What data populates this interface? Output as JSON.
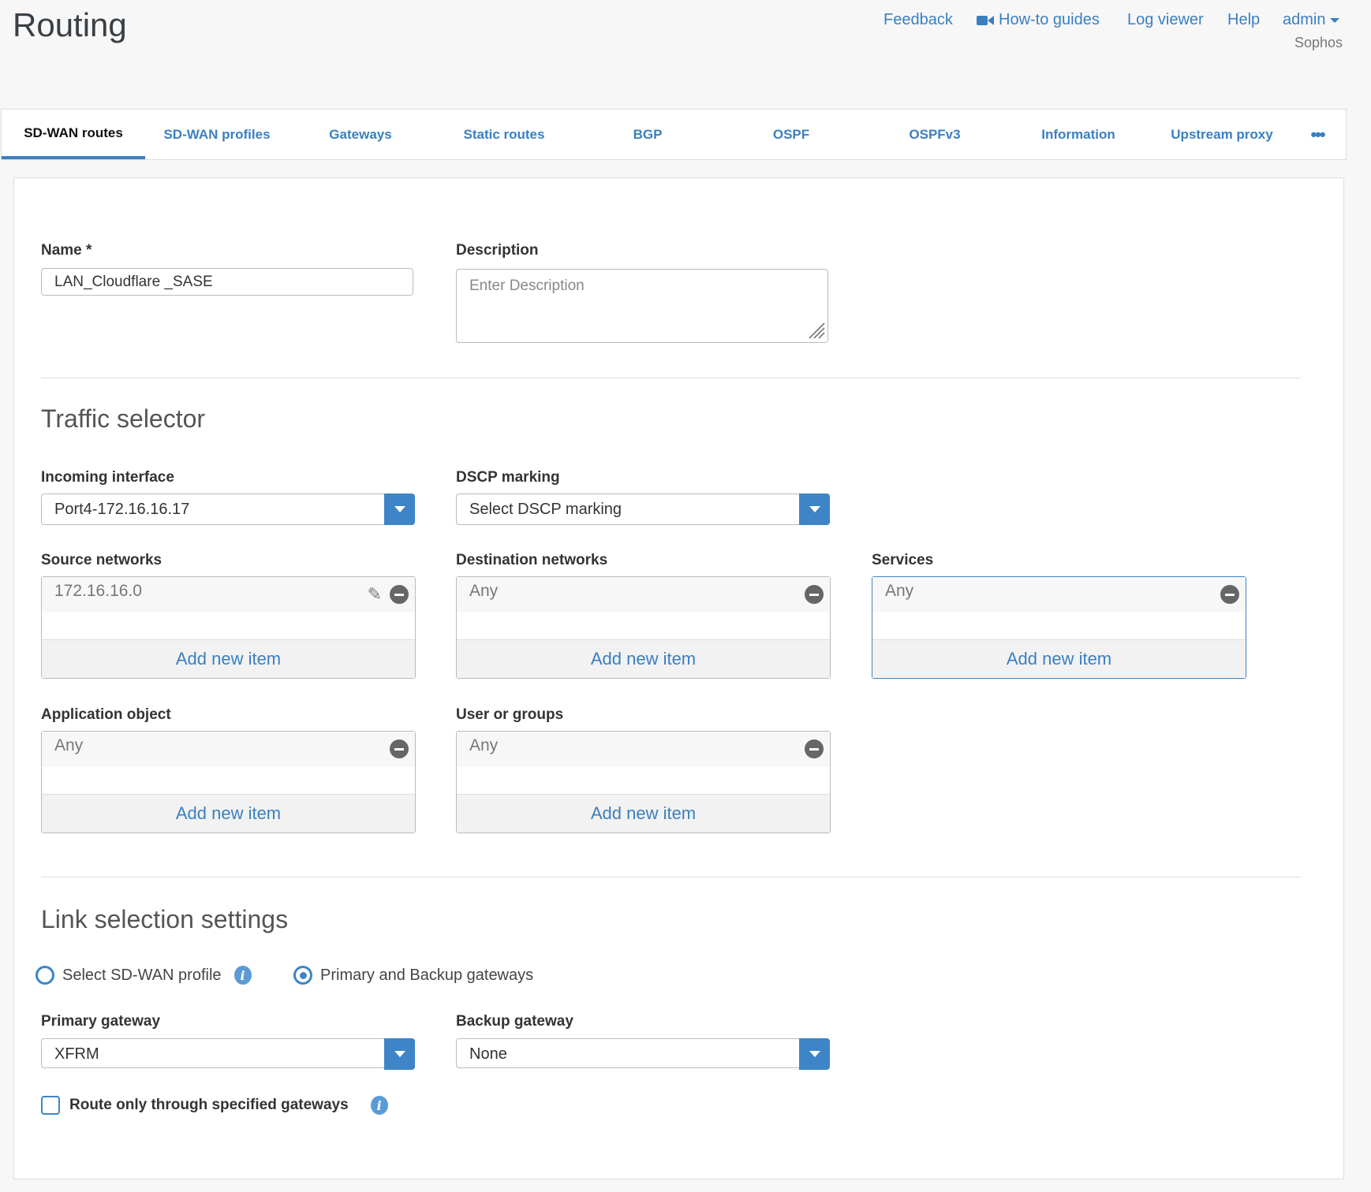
{
  "header": {
    "title": "Routing",
    "links": {
      "feedback": "Feedback",
      "howto": "How-to guides",
      "logviewer": "Log viewer",
      "help": "Help",
      "admin": "admin"
    },
    "org": "Sophos"
  },
  "tabs": [
    "SD-WAN routes",
    "SD-WAN profiles",
    "Gateways",
    "Static routes",
    "BGP",
    "OSPF",
    "OSPFv3",
    "Information",
    "Upstream proxy"
  ],
  "form": {
    "name": {
      "label": "Name *",
      "value": "LAN_Cloudflare _SASE"
    },
    "description": {
      "label": "Description",
      "placeholder": "Enter Description"
    },
    "traffic_selector": {
      "title": "Traffic selector",
      "incoming": {
        "label": "Incoming interface",
        "value": "Port4-172.16.16.17"
      },
      "dscp": {
        "label": "DSCP marking",
        "value": "Select DSCP marking"
      },
      "source": {
        "label": "Source networks",
        "item": "172.16.16.0",
        "add": "Add new item"
      },
      "destination": {
        "label": "Destination networks",
        "item": "Any",
        "add": "Add new item"
      },
      "services": {
        "label": "Services",
        "item": "Any",
        "add": "Add new item"
      },
      "application": {
        "label": "Application object",
        "item": "Any",
        "add": "Add new item"
      },
      "users": {
        "label": "User or groups",
        "item": "Any",
        "add": "Add new item"
      }
    },
    "link_selection": {
      "title": "Link selection settings",
      "option_profile": "Select SD-WAN profile",
      "option_gateways": "Primary and Backup gateways",
      "selected": "Primary and Backup gateways",
      "primary": {
        "label": "Primary gateway",
        "value": "XFRM"
      },
      "backup": {
        "label": "Backup gateway",
        "value": "None"
      },
      "route_only": {
        "label": "Route only through specified gateways",
        "checked": false
      }
    }
  },
  "colors": {
    "accent": "#3d85c6",
    "link": "#3a7fc1"
  }
}
